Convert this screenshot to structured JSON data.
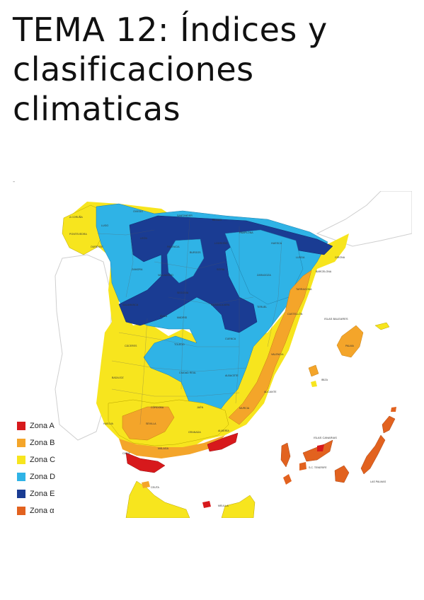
{
  "title": "TEMA 12: Índices y clasificaciones climaticas",
  "legend": [
    {
      "label": "Zona A",
      "color": "#d7191c"
    },
    {
      "label": "Zona B",
      "color": "#f4a52a"
    },
    {
      "label": "Zona C",
      "color": "#f7e51e"
    },
    {
      "label": "Zona D",
      "color": "#2fb3e6"
    },
    {
      "label": "Zona E",
      "color": "#1a3c93"
    },
    {
      "label": "Zona α",
      "color": "#e2621f"
    }
  ],
  "map_labels": {
    "baleares": "ISLAS BALEARES",
    "canarias": "ISLAS CANARIAS",
    "coruna": "A CORUÑA",
    "oviedo": "OVIEDO",
    "santander": "SANTANDER",
    "bilbao": "BILBAO",
    "lugo": "LUGO",
    "leon": "LEÓN",
    "burgos": "BURGOS",
    "pontevedra": "PONTEVEDRA",
    "ourense": "OURENSE",
    "palencia": "PALENCIA",
    "logrono": "LOGROÑO",
    "pamplona": "PAMPLONA",
    "huesca": "HUESCA",
    "girona": "GIRONA",
    "lleida": "LLEIDA",
    "barcelona": "BARCELONA",
    "zamora": "ZAMORA",
    "valladolid": "VALLADOLID",
    "soria": "SORIA",
    "zaragoza": "ZARAGOZA",
    "tarragona": "TARRAGONA",
    "salamanca": "SALAMANCA",
    "segovia": "SEGOVIA",
    "guadalajara": "GUADALAJARA",
    "teruel": "TERUEL",
    "castellon": "CASTELLÓN",
    "avila": "ÁVILA",
    "madrid": "MADRID",
    "caceres": "CÁCERES",
    "toledo": "TOLEDO",
    "cuenca": "CUENCA",
    "valencia": "VALENCIA",
    "badajoz": "BADAJOZ",
    "ciudad_real": "CIUDAD REAL",
    "albacete": "ALBACETE",
    "alicante": "ALICANTE",
    "cordoba": "CÓRDOBA",
    "jaen": "JAÉN",
    "murcia": "MURCIA",
    "huelva": "HUELVA",
    "sevilla": "SEVILLA",
    "granada": "GRANADA",
    "almeria": "ALMERÍA",
    "cadiz": "CÁDIZ",
    "malaga": "MÁLAGA",
    "ceuta": "CEUTA",
    "melilla": "MELILLA",
    "palma": "PALMA",
    "ibiza": "IBIZA",
    "tenerife": "S.C. TENERIFE",
    "las_palmas": "LAS PALMAS"
  }
}
